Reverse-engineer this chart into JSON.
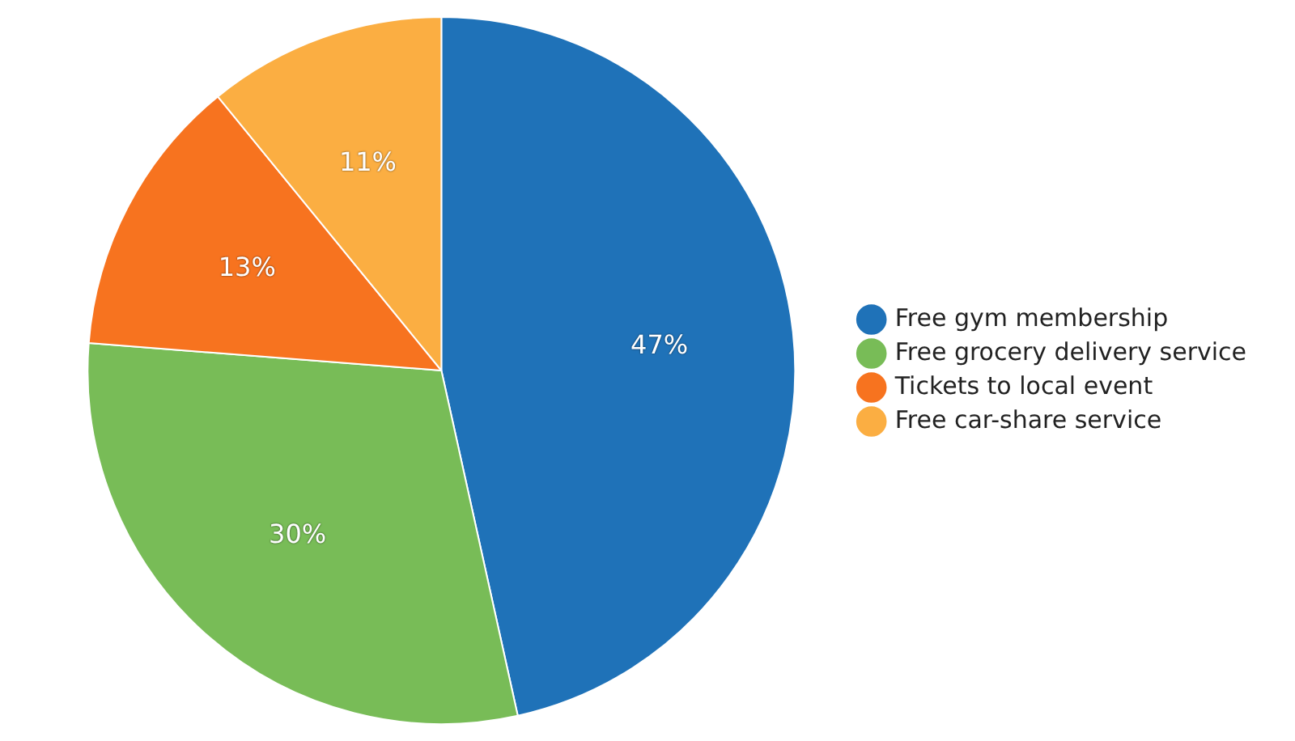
{
  "chart_data": {
    "type": "pie",
    "categories": [
      "Free gym membership",
      "Free grocery delivery service",
      "Tickets to local event",
      "Free car-share service"
    ],
    "values": [
      47,
      30,
      13,
      11
    ],
    "colors": [
      "#1f72b8",
      "#78bc57",
      "#f7731f",
      "#fbae42"
    ],
    "value_labels": [
      "47%",
      "30%",
      "13%",
      "11%"
    ],
    "legend": "right"
  }
}
